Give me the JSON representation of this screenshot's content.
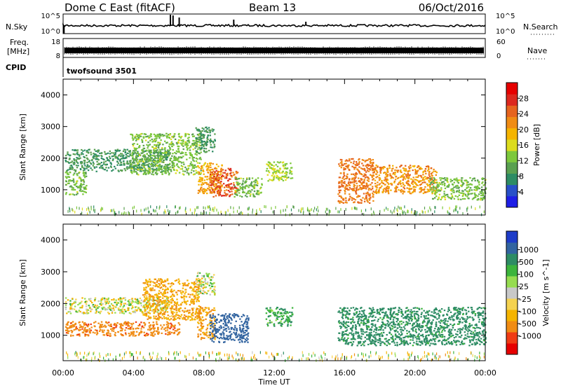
{
  "header": {
    "station": "Dome C East (fitACF)",
    "beam": "Beam 13",
    "date": "06/Oct/2016"
  },
  "noise_panel": {
    "left_label": "N.Sky",
    "right_label": "N.Search",
    "left_ticks": [
      "10^5",
      "10^0"
    ],
    "right_ticks": [
      "10^5",
      "10^0"
    ]
  },
  "freq_panel": {
    "left_label_line1": "Freq.",
    "left_label_line2": "[MHz]",
    "right_label": "Nave",
    "left_ticks": [
      "18",
      "8"
    ],
    "right_ticks": [
      "60",
      "0"
    ]
  },
  "cpid_panel": {
    "label": "CPID",
    "value": "twofsound 3501"
  },
  "time_axis": {
    "label": "Time UT",
    "ticks": [
      "00:00",
      "04:00",
      "08:00",
      "12:00",
      "16:00",
      "20:00",
      "00:00"
    ]
  },
  "colors": {
    "power_scale": [
      "#1e1ee6",
      "#2850c8",
      "#2d8c64",
      "#5aa050",
      "#7dc83c",
      "#dcdc1e",
      "#f5b400",
      "#f08c14",
      "#e6641e",
      "#dc281e",
      "#e60000"
    ],
    "velocity_scale": [
      "#e60000",
      "#f03c14",
      "#f08c14",
      "#f5b400",
      "#f5d250",
      "#c8c8c8",
      "#96dc50",
      "#3cb43c",
      "#2d8c64",
      "#3264a0",
      "#1e3cc8"
    ]
  },
  "chart_data": [
    {
      "type": "heatmap",
      "name": "power",
      "xlabel": "",
      "ylabel": "Slant Range [km]",
      "xlim": [
        0,
        24
      ],
      "ylim": [
        200,
        4500
      ],
      "yticks": [
        "1000",
        "2000",
        "3000",
        "4000"
      ],
      "colorbar_label": "Power [dB]",
      "colorbar_ticks": [
        "4",
        "8",
        "12",
        "16",
        "20",
        "24",
        "28"
      ],
      "colorbar_range": [
        0,
        32
      ],
      "regions": [
        {
          "t0": 0.1,
          "t1": 1.3,
          "r0": 850,
          "r1": 1600,
          "value": 12
        },
        {
          "t0": 0.1,
          "t1": 6.0,
          "r0": 1600,
          "r1": 2300,
          "value": 8
        },
        {
          "t0": 3.8,
          "t1": 7.8,
          "r0": 1500,
          "r1": 2800,
          "value": 12
        },
        {
          "t0": 7.5,
          "t1": 8.6,
          "r0": 2200,
          "r1": 3000,
          "value": 8
        },
        {
          "t0": 7.6,
          "t1": 9.0,
          "r0": 900,
          "r1": 1900,
          "value": 20
        },
        {
          "t0": 8.3,
          "t1": 9.9,
          "r0": 800,
          "r1": 1700,
          "value": 26
        },
        {
          "t0": 9.7,
          "t1": 11.3,
          "r0": 800,
          "r1": 1400,
          "value": 12
        },
        {
          "t0": 11.5,
          "t1": 13.0,
          "r0": 1300,
          "r1": 1900,
          "value": 14
        },
        {
          "t0": 15.6,
          "t1": 17.6,
          "r0": 600,
          "r1": 2000,
          "value": 24
        },
        {
          "t0": 17.6,
          "t1": 21.2,
          "r0": 900,
          "r1": 1800,
          "value": 22
        },
        {
          "t0": 20.8,
          "t1": 24.0,
          "r0": 700,
          "r1": 1400,
          "value": 12
        }
      ]
    },
    {
      "type": "heatmap",
      "name": "velocity",
      "xlabel": "Time UT",
      "ylabel": "Slant Range [km]",
      "xlim": [
        0,
        24
      ],
      "ylim": [
        200,
        4500
      ],
      "yticks": [
        "1000",
        "2000",
        "3000",
        "4000"
      ],
      "colorbar_label": "Velocity [m s^-1]",
      "colorbar_ticks": [
        "-1000",
        "-500",
        "-100",
        "-25",
        "25",
        "100",
        "500",
        "1000"
      ],
      "regions": [
        {
          "t0": 0.1,
          "t1": 6.6,
          "r0": 1000,
          "r1": 1450,
          "value": -300
        },
        {
          "t0": 0.1,
          "t1": 6.0,
          "r0": 1700,
          "r1": 2200,
          "value": 0
        },
        {
          "t0": 4.5,
          "t1": 7.8,
          "r0": 1500,
          "r1": 2800,
          "value": -150
        },
        {
          "t0": 7.5,
          "t1": 8.6,
          "r0": 2300,
          "r1": 3000,
          "value": 0
        },
        {
          "t0": 7.6,
          "t1": 8.6,
          "r0": 900,
          "r1": 1900,
          "value": -200
        },
        {
          "t0": 8.3,
          "t1": 10.5,
          "r0": 800,
          "r1": 1700,
          "value": 600
        },
        {
          "t0": 11.5,
          "t1": 13.0,
          "r0": 1300,
          "r1": 1900,
          "value": 150
        },
        {
          "t0": 15.6,
          "t1": 24.0,
          "r0": 700,
          "r1": 1900,
          "value": 250
        }
      ]
    }
  ]
}
